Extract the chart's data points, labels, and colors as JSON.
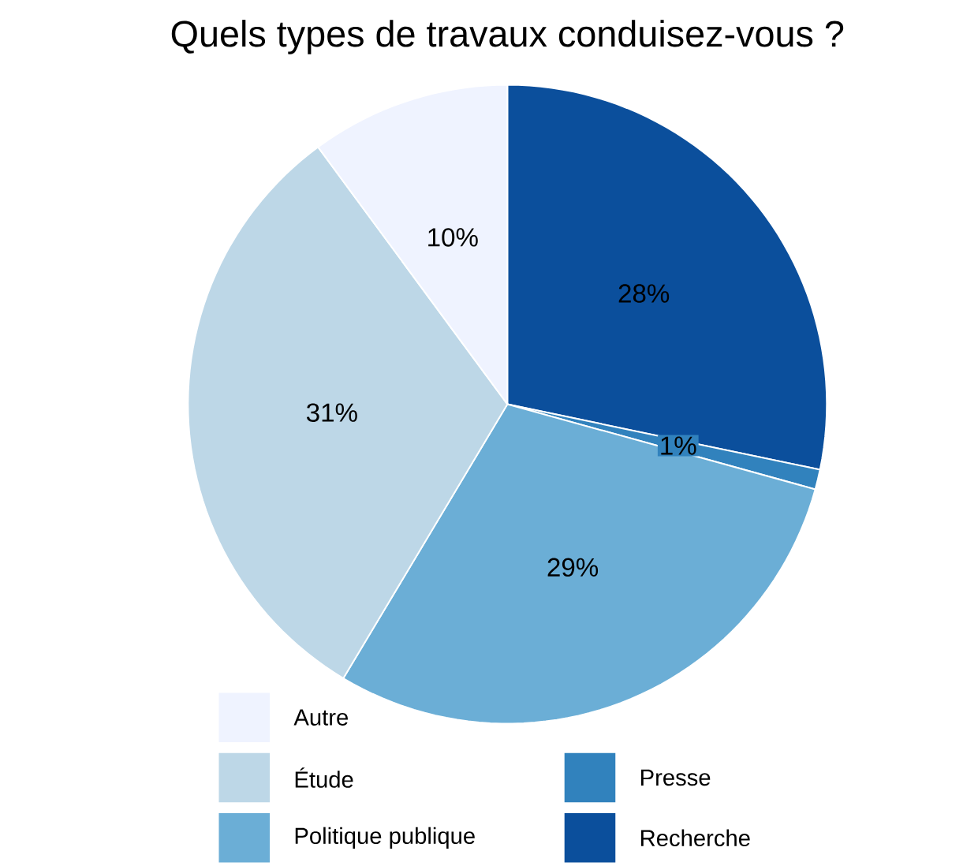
{
  "chart_data": {
    "type": "pie",
    "title": "Quels types de travaux conduisez-vous ?",
    "categories": [
      "Recherche",
      "Presse",
      "Politique publique",
      "Étude",
      "Autre"
    ],
    "values": [
      28,
      1,
      29,
      31,
      10
    ],
    "colors": [
      "#0b4f9c",
      "#3182bd",
      "#6baed6",
      "#bdd7e7",
      "#eff3ff"
    ],
    "value_labels": [
      "28%",
      "1%",
      "29%",
      "31%",
      "10%"
    ],
    "legend": "bottom"
  }
}
